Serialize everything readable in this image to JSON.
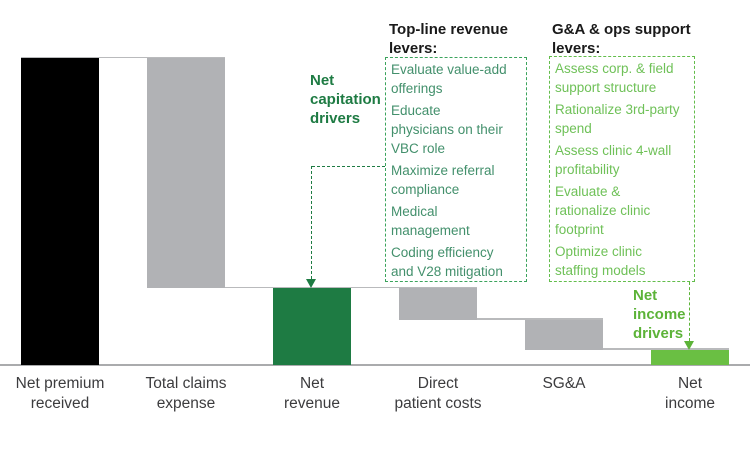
{
  "colors": {
    "bar_black": "#000000",
    "bar_gray": "#b1b2b5",
    "bar_dark_green": "#1e7b43",
    "bar_light_green": "#6abf43",
    "dark_green_text": "#1e7b43",
    "light_green_text": "#5cb338",
    "left_box_text": "#43906c",
    "left_box_border": "#3ba35c",
    "right_box_text": "#6fc158",
    "right_box_border": "#63bd4b",
    "connector": "#b9babc",
    "baseline": "#aaabad",
    "axis_label": "#3c3c3e",
    "header_text": "#1a1a1a"
  },
  "annotations": {
    "net_capitation_drivers": "Net\ncapitation\ndrivers",
    "net_income_drivers": "Net\nincome\ndrivers"
  },
  "levers_left": {
    "title": "Top-line revenue\nlevers:",
    "items": [
      "Evaluate value-add\nofferings",
      "Educate\nphysicians on their\nVBC role",
      "Maximize referral\ncompliance",
      "Medical\nmanagement",
      "Coding efficiency\nand V28 mitigation"
    ]
  },
  "levers_right": {
    "title": "G&A & ops support\nlevers:",
    "items": [
      "Assess corp. & field\nsupport structure",
      "Rationalize 3rd-party\nspend",
      "Assess clinic 4-wall\nprofitability",
      "Evaluate &\nrationalize clinic\nfootprint",
      "Optimize clinic\nstaffing models"
    ]
  },
  "chart_data": {
    "type": "bar",
    "subtype": "waterfall",
    "title": "",
    "xlabel": "",
    "ylabel": "",
    "axis_values_shown": false,
    "grid": false,
    "legend": false,
    "note": "Schematic waterfall; values normalized so Net premium received = 100",
    "ylim": [
      0,
      100
    ],
    "categories": [
      "Net premium\nreceived",
      "Total claims\nexpense",
      "Net\nrevenue",
      "Direct\npatient costs",
      "SG&A",
      "Net\nincome"
    ],
    "bars": [
      {
        "label": "Net premium received",
        "lo": 0,
        "hi": 100,
        "kind": "total",
        "color": "bar_black"
      },
      {
        "label": "Total claims expense",
        "lo": 25,
        "hi": 100,
        "kind": "decrease",
        "color": "bar_gray"
      },
      {
        "label": "Net revenue",
        "lo": 0,
        "hi": 25,
        "kind": "subtotal",
        "color": "bar_dark_green"
      },
      {
        "label": "Direct patient costs",
        "lo": 14.7,
        "hi": 25,
        "kind": "decrease",
        "color": "bar_gray"
      },
      {
        "label": "SG&A",
        "lo": 4.9,
        "hi": 14.7,
        "kind": "decrease",
        "color": "bar_gray"
      },
      {
        "label": "Net income",
        "lo": 0,
        "hi": 4.9,
        "kind": "subtotal",
        "color": "bar_light_green"
      }
    ],
    "connectors": [
      {
        "level": 100,
        "from": 0,
        "to": 1
      },
      {
        "level": 25,
        "from": 1,
        "to": 3
      },
      {
        "level": 14.7,
        "from": 3,
        "to": 4
      },
      {
        "level": 4.9,
        "from": 4,
        "to": 5
      }
    ]
  }
}
